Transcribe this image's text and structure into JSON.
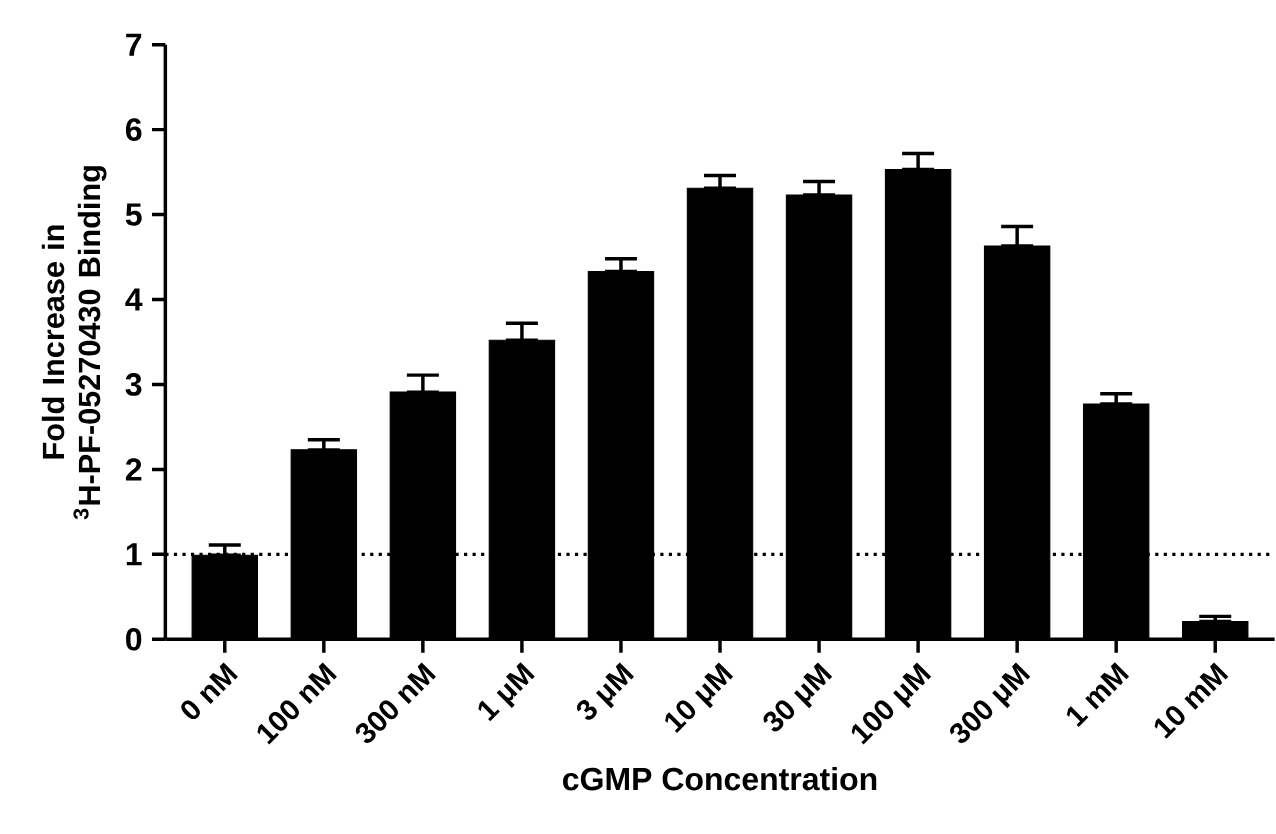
{
  "chart_data": {
    "type": "bar",
    "xlabel": "cGMP Concentration",
    "ylabel": "Fold Increase in $^{3}$H-PF-05270430 Binding",
    "categories": [
      "0 nM",
      "100 nM",
      "300 nM",
      "1 μM",
      "3 μM",
      "10 μM",
      "30 μM",
      "100 μM",
      "300 μM",
      "1 mM",
      "10 mM"
    ],
    "values": [
      0.99,
      2.23,
      2.91,
      3.52,
      4.33,
      5.31,
      5.23,
      5.53,
      4.63,
      2.77,
      0.21
    ],
    "errors": [
      [
        0.99,
        1.11
      ],
      [
        2.23,
        2.35
      ],
      [
        2.91,
        3.11
      ],
      [
        3.52,
        3.72
      ],
      [
        4.33,
        4.48
      ],
      [
        5.31,
        5.46
      ],
      [
        5.23,
        5.39
      ],
      [
        5.53,
        5.72
      ],
      [
        4.63,
        4.86
      ],
      [
        2.77,
        2.89
      ],
      [
        0.21,
        0.27
      ]
    ],
    "color": "#000000",
    "ylim": [
      0,
      7
    ],
    "yticks": [
      0,
      1,
      2,
      3,
      4,
      5,
      6,
      7
    ],
    "ref_lines": [
      {
        "axis": "y",
        "value": 1,
        "line_style": "dotted"
      }
    ],
    "grid": false,
    "legend": false
  }
}
